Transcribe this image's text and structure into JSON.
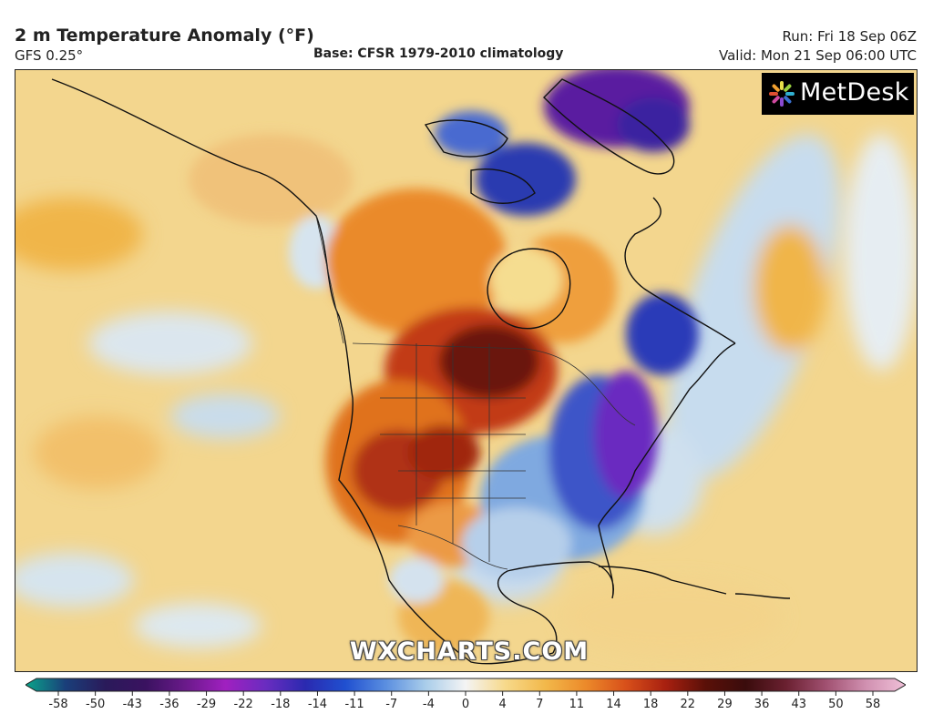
{
  "header": {
    "title": "2 m Temperature Anomaly (°F)",
    "model": "GFS 0.25°",
    "base": "Base: CFSR 1979-2010 climatology",
    "run": "Run: Fri 18 Sep 06Z",
    "valid": "Valid: Mon 21 Sep 06:00 UTC"
  },
  "logo": {
    "text": "MetDesk",
    "icon": "metdesk-logo-icon"
  },
  "watermark": "WXCHARTS.COM",
  "colorbar": {
    "labels": [
      "-58",
      "-50",
      "-43",
      "-36",
      "-29",
      "-22",
      "-18",
      "-14",
      "-11",
      "-7",
      "-4",
      "0",
      "4",
      "7",
      "11",
      "14",
      "18",
      "22",
      "29",
      "36",
      "43",
      "50",
      "58"
    ],
    "colors": [
      "#0aa58a",
      "#1a3f7a",
      "#2a1a5a",
      "#3a1260",
      "#6a1a8a",
      "#a020c0",
      "#6a2cc0",
      "#2a2ab0",
      "#2050d0",
      "#5a8ee0",
      "#a9cdea",
      "#f4f4f4",
      "#f7d98a",
      "#f2b84a",
      "#ec8a2a",
      "#d8501a",
      "#a82010",
      "#5a1008",
      "#3a0c0c",
      "#6a2030",
      "#a05070",
      "#d090b0",
      "#f0c0d8"
    ]
  },
  "map": {
    "region": "North America",
    "anomaly_areas": [
      {
        "name": "western-us-warm",
        "category": "warm"
      },
      {
        "name": "northern-plains-hot",
        "category": "hot"
      },
      {
        "name": "hudson-bay-warm",
        "category": "warm"
      },
      {
        "name": "eastern-us-cold",
        "category": "cold"
      },
      {
        "name": "northeast-very-cold",
        "category": "very-cold"
      },
      {
        "name": "greenland-cold",
        "category": "very-cold"
      },
      {
        "name": "gulf-cool",
        "category": "cool"
      },
      {
        "name": "atlantic-cool",
        "category": "cool"
      }
    ]
  }
}
